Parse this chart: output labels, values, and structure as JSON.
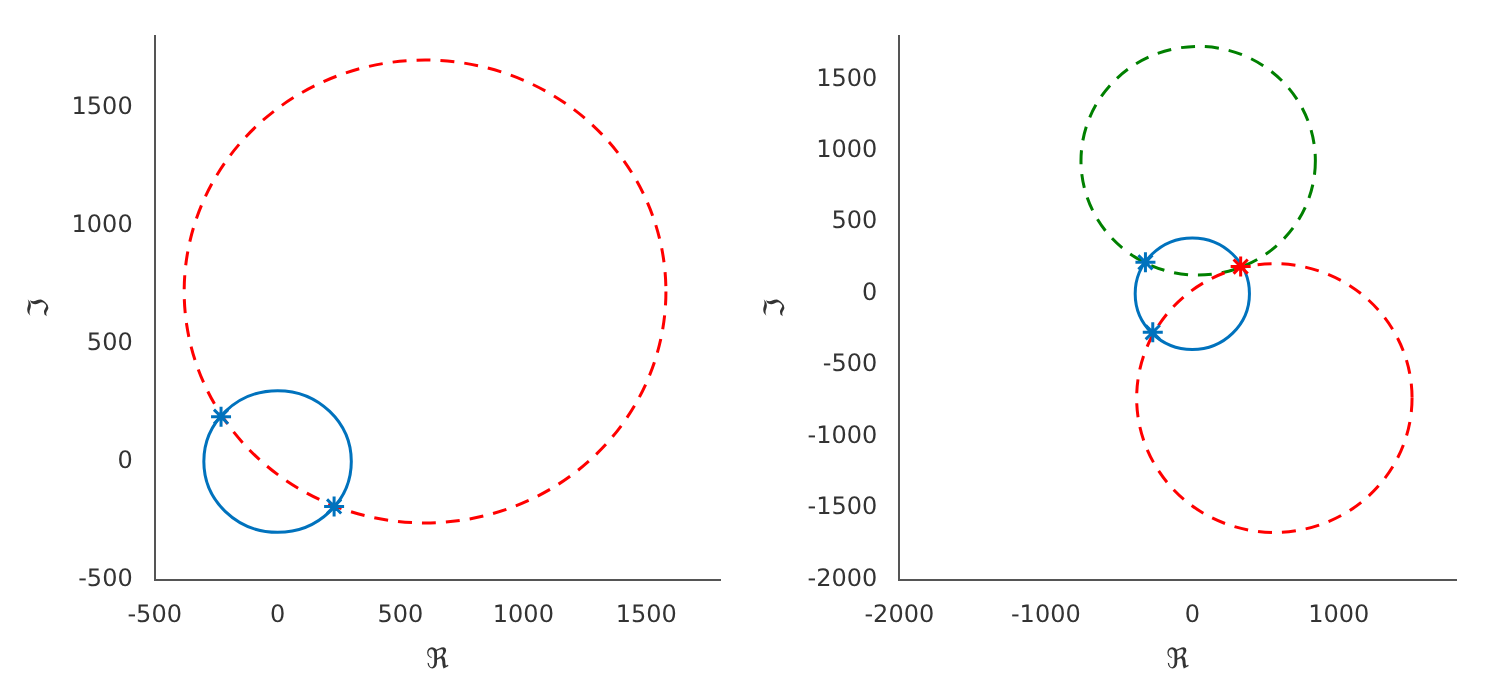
{
  "chart_data": [
    {
      "type": "scatter",
      "xlabel": "ℜ",
      "ylabel": "ℑ",
      "xlim": [
        -500,
        1800
      ],
      "ylim": [
        -500,
        1800
      ],
      "xticks": [
        -500,
        0,
        500,
        1000,
        1500
      ],
      "yticks": [
        -500,
        0,
        500,
        1000,
        1500
      ],
      "legend": false,
      "series": [
        {
          "color": "#0072bd",
          "marker": "cross",
          "x": [
            -230,
            230
          ],
          "values": [
            190,
            -190
          ]
        }
      ]
    },
    {
      "type": "scatter",
      "xlabel": "ℜ",
      "ylabel": "ℑ",
      "xlim": [
        -2000,
        1800
      ],
      "ylim": [
        -2000,
        1800
      ],
      "xticks": [
        -2000,
        -1000,
        0,
        1000
      ],
      "yticks": [
        -2000,
        -1500,
        -1000,
        -500,
        0,
        500,
        1000,
        1500
      ],
      "legend": false,
      "series": [
        {
          "color": "#0072bd",
          "marker": "cross",
          "x": [
            -320,
            -270
          ],
          "values": [
            220,
            -270
          ]
        },
        {
          "color": "#ff0000",
          "marker": "cross",
          "x": [
            330
          ],
          "values": [
            190
          ]
        }
      ]
    }
  ]
}
